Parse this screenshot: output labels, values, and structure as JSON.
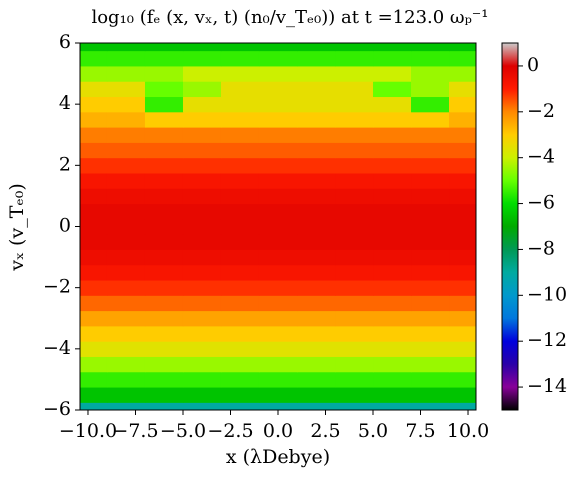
{
  "chart_data": {
    "type": "heatmap",
    "title": "log₁₀ (fₑ (x, vₓ, t) (n₀/v_Tₑ₀))  at t =123.0 ωₚ⁻¹",
    "x_label": "x (λDebye)",
    "y_label": "vₓ (v_Tₑ₀)",
    "x": [
      -10,
      -8,
      -6,
      -4,
      -2,
      0,
      2,
      4,
      6,
      8,
      10
    ],
    "y": [
      -6,
      -5.5,
      -5,
      -4.5,
      -4,
      -3.5,
      -3,
      -2.5,
      -2,
      -1.5,
      -1,
      -0.5,
      0,
      0.5,
      1,
      1.5,
      2,
      2.5,
      3,
      3.5,
      4,
      4.5,
      5,
      5.5,
      6
    ],
    "z": [
      [
        -9,
        -9,
        -9,
        -9,
        -9,
        -9,
        -9,
        -9,
        -9,
        -9,
        -9
      ],
      [
        -6.5,
        -6.5,
        -6.5,
        -6.5,
        -6.5,
        -6.5,
        -6.5,
        -6.5,
        -6.5,
        -6.5,
        -6.5
      ],
      [
        -5.5,
        -5.5,
        -5.5,
        -5.5,
        -5.5,
        -5.5,
        -5.5,
        -5.5,
        -5.5,
        -5.5,
        -5.5
      ],
      [
        -4.5,
        -4.5,
        -4.5,
        -4.5,
        -4.5,
        -4.5,
        -4.5,
        -4.5,
        -4.5,
        -4.5,
        -4.5
      ],
      [
        -3.6,
        -3.6,
        -3.6,
        -3.6,
        -3.6,
        -3.6,
        -3.6,
        -3.6,
        -3.6,
        -3.6,
        -3.6
      ],
      [
        -3,
        -3,
        -3,
        -3,
        -3,
        -3,
        -3,
        -3,
        -3,
        -3,
        -3
      ],
      [
        -2.4,
        -2.4,
        -2.4,
        -2.4,
        -2.4,
        -2.4,
        -2.4,
        -2.4,
        -2.4,
        -2.4,
        -2.4
      ],
      [
        -1.7,
        -1.7,
        -1.7,
        -1.7,
        -1.7,
        -1.7,
        -1.7,
        -1.7,
        -1.7,
        -1.7,
        -1.7
      ],
      [
        -1.2,
        -1.2,
        -1.2,
        -1.2,
        -1.2,
        -1.2,
        -1.2,
        -1.2,
        -1.2,
        -1.2,
        -1.2
      ],
      [
        -0.8,
        -0.8,
        -0.8,
        -0.8,
        -0.8,
        -0.8,
        -0.8,
        -0.8,
        -0.8,
        -0.8,
        -0.8
      ],
      [
        -0.5,
        -0.5,
        -0.5,
        -0.5,
        -0.5,
        -0.5,
        -0.5,
        -0.5,
        -0.5,
        -0.5,
        -0.5
      ],
      [
        -0.3,
        -0.3,
        -0.3,
        -0.3,
        -0.3,
        -0.3,
        -0.3,
        -0.3,
        -0.3,
        -0.3,
        -0.3
      ],
      [
        -0.3,
        -0.3,
        -0.3,
        -0.3,
        -0.3,
        -0.3,
        -0.3,
        -0.3,
        -0.3,
        -0.3,
        -0.3
      ],
      [
        -0.3,
        -0.3,
        -0.3,
        -0.3,
        -0.3,
        -0.3,
        -0.3,
        -0.3,
        -0.3,
        -0.3,
        -0.3
      ],
      [
        -0.5,
        -0.5,
        -0.5,
        -0.5,
        -0.5,
        -0.5,
        -0.5,
        -0.5,
        -0.5,
        -0.5,
        -0.5
      ],
      [
        -0.8,
        -0.8,
        -0.8,
        -0.8,
        -0.8,
        -0.8,
        -0.8,
        -0.8,
        -0.8,
        -0.8,
        -0.8
      ],
      [
        -1.2,
        -1.2,
        -1.2,
        -1.2,
        -1.2,
        -1.2,
        -1.2,
        -1.2,
        -1.2,
        -1.2,
        -1.2
      ],
      [
        -1.6,
        -1.6,
        -1.6,
        -1.6,
        -1.6,
        -1.6,
        -1.6,
        -1.6,
        -1.6,
        -1.6,
        -1.6
      ],
      [
        -1.9,
        -1.9,
        -1.9,
        -1.9,
        -1.9,
        -1.9,
        -1.9,
        -1.9,
        -1.9,
        -1.9,
        -1.9
      ],
      [
        -2.6,
        -2.6,
        -3,
        -3,
        -3,
        -3,
        -3,
        -3,
        -3,
        -3,
        -2.6
      ],
      [
        -3,
        -3,
        -5.5,
        -3.5,
        -3.5,
        -3.5,
        -3.5,
        -3.5,
        -3.5,
        -5.5,
        -3
      ],
      [
        -3.5,
        -3.5,
        -5,
        -4.5,
        -3.5,
        -3.5,
        -3.5,
        -3.5,
        -5,
        -4.5,
        -3.5
      ],
      [
        -4.5,
        -4.5,
        -4.5,
        -4,
        -4,
        -4,
        -4,
        -4,
        -4,
        -4.5,
        -4.5
      ],
      [
        -5.5,
        -5.5,
        -5.5,
        -5.5,
        -5.5,
        -5.5,
        -5.5,
        -5.5,
        -5.5,
        -5.5,
        -5.5
      ],
      [
        -6.5,
        -6.5,
        -6.5,
        -6.5,
        -6.5,
        -6.5,
        -6.5,
        -6.5,
        -6.5,
        -6.5,
        -6.5
      ]
    ],
    "xlim": [
      -10.42,
      10.42
    ],
    "ylim": [
      -6,
      6
    ],
    "xticks": [
      {
        "value": -10,
        "label": "−10.0"
      },
      {
        "value": -7.5,
        "label": "−7.5"
      },
      {
        "value": -5,
        "label": "−5.0"
      },
      {
        "value": -2.5,
        "label": "−2.5"
      },
      {
        "value": 0,
        "label": "0.0"
      },
      2.5,
      {
        "value": 5,
        "label": "5.0"
      },
      7.5,
      {
        "value": 10,
        "label": "10.0"
      }
    ],
    "yticks": [
      {
        "value": -6,
        "label": "−6"
      },
      {
        "value": -4,
        "label": "−4"
      },
      {
        "value": -2,
        "label": "−2"
      },
      0,
      2,
      4,
      6
    ],
    "clim": [
      -15,
      1
    ],
    "cticks": [
      0,
      {
        "value": -2,
        "label": "−2"
      },
      {
        "value": -4,
        "label": "−4"
      },
      {
        "value": -6,
        "label": "−6"
      },
      {
        "value": -8,
        "label": "−8"
      },
      {
        "value": -10,
        "label": "−10"
      },
      {
        "value": -12,
        "label": "−12"
      },
      {
        "value": -14,
        "label": "−14"
      }
    ],
    "colormap": [
      "#000000",
      "#880099",
      "#2a00a8",
      "#0000dd",
      "#0077dd",
      "#0099cc",
      "#00aaa0",
      "#009955",
      "#00aa00",
      "#00dd00",
      "#66ff00",
      "#ccf000",
      "#ffcc00",
      "#ff8800",
      "#ff1a00",
      "#dd0000",
      "#cccccc"
    ]
  }
}
